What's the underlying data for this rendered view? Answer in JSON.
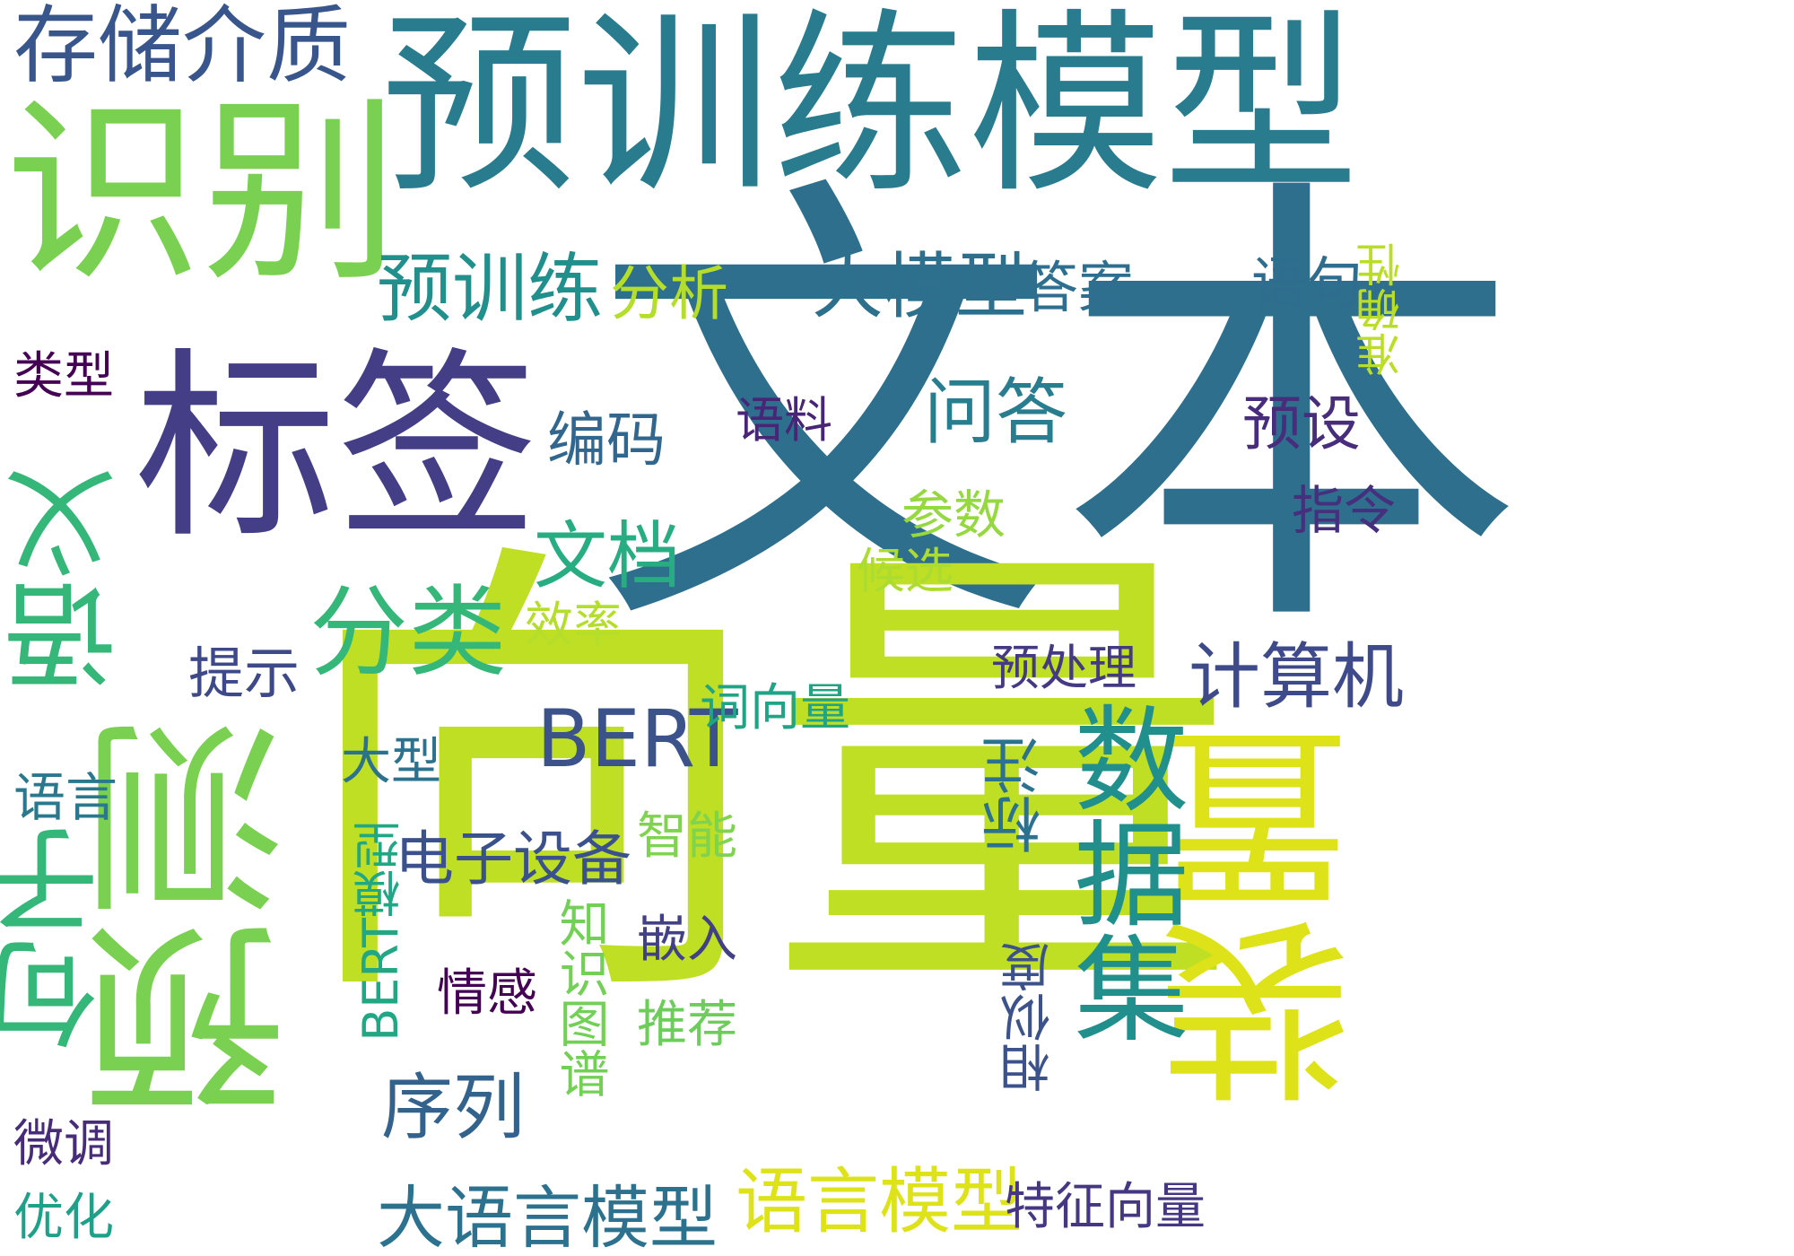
{
  "words": [
    {
      "text": "文本",
      "color": "#2e6f8e"
    },
    {
      "text": "向量",
      "color": "#bfdf25"
    },
    {
      "text": "预训练模型",
      "color": "#287c8e"
    },
    {
      "text": "标签",
      "color": "#433e85"
    },
    {
      "text": "识别",
      "color": "#7ad151"
    },
    {
      "text": "预测",
      "color": "#7ad151"
    },
    {
      "text": "装置",
      "color": "#dde318"
    },
    {
      "text": "数据集",
      "color": "#21908c"
    },
    {
      "text": "句子",
      "color": "#35b779"
    },
    {
      "text": "语义",
      "color": "#35b779"
    },
    {
      "text": "分类",
      "color": "#35b779"
    },
    {
      "text": "预训练",
      "color": "#21908c"
    },
    {
      "text": "大模型",
      "color": "#2d708e"
    },
    {
      "text": "存储介质",
      "color": "#39568c"
    },
    {
      "text": "语言模型",
      "color": "#dde318"
    },
    {
      "text": "BERT",
      "color": "#3b528b"
    },
    {
      "text": "计算机",
      "color": "#3e4a89"
    },
    {
      "text": "问答",
      "color": "#287d8e"
    },
    {
      "text": "文档",
      "color": "#27ad81"
    },
    {
      "text": "序列",
      "color": "#33638d"
    },
    {
      "text": "大语言模型",
      "color": "#2c728e"
    },
    {
      "text": "标注",
      "color": "#2c728e"
    },
    {
      "text": "分析",
      "color": "#b5de2b"
    },
    {
      "text": "答案",
      "color": "#2e6e8e"
    },
    {
      "text": "语句",
      "color": "#2e6d8e"
    },
    {
      "text": "准确性",
      "color": "#bade28"
    },
    {
      "text": "类型",
      "color": "#440154"
    },
    {
      "text": "编码",
      "color": "#31668e"
    },
    {
      "text": "预设",
      "color": "#472d7b"
    },
    {
      "text": "语料",
      "color": "#482576"
    },
    {
      "text": "指令",
      "color": "#46307e"
    },
    {
      "text": "参数",
      "color": "#95d840"
    },
    {
      "text": "候选",
      "color": "#addc30"
    },
    {
      "text": "效率",
      "color": "#b5de2b"
    },
    {
      "text": "提示",
      "color": "#3e4989"
    },
    {
      "text": "预处理",
      "color": "#443983"
    },
    {
      "text": "词向量",
      "color": "#20a486"
    },
    {
      "text": "大型",
      "color": "#2c728e"
    },
    {
      "text": "语言",
      "color": "#2a788e"
    },
    {
      "text": "电子设备",
      "color": "#3b518b"
    },
    {
      "text": "智能",
      "color": "#7fd34e"
    },
    {
      "text": "BERT模型",
      "color": "#22a785"
    },
    {
      "text": "知识图谱",
      "color": "#73d056"
    },
    {
      "text": "情感",
      "color": "#440154"
    },
    {
      "text": "嵌入",
      "color": "#424186"
    },
    {
      "text": "推荐",
      "color": "#6ccd5a"
    },
    {
      "text": "相似度",
      "color": "#3b528b"
    },
    {
      "text": "特征向量",
      "color": "#453781"
    },
    {
      "text": "微调",
      "color": "#472c7a"
    },
    {
      "text": "优化",
      "color": "#1fa088"
    }
  ]
}
